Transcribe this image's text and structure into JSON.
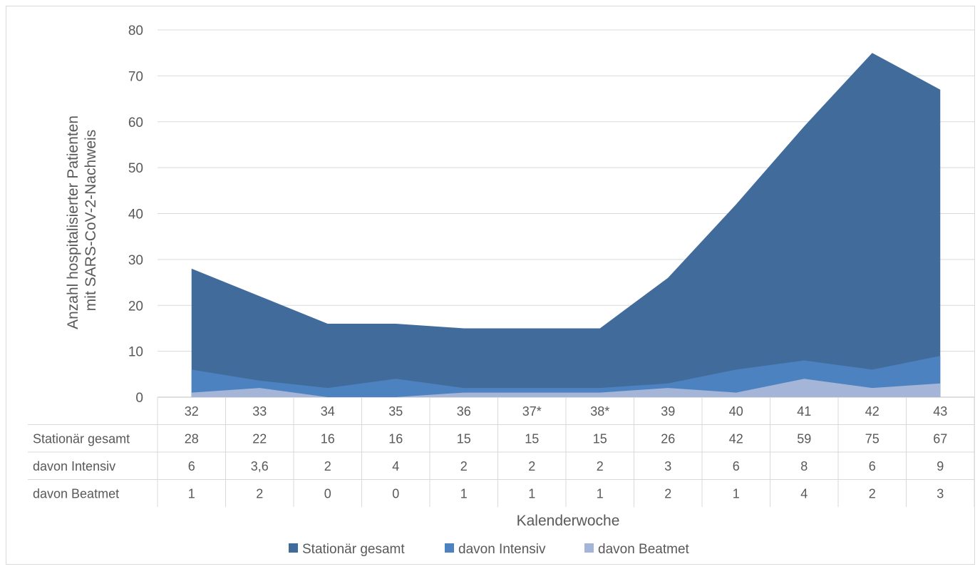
{
  "chart_data": {
    "type": "area",
    "stacking": "overlap",
    "categories": [
      "32",
      "33",
      "34",
      "35",
      "36",
      "37*",
      "38*",
      "39",
      "40",
      "41",
      "42",
      "43"
    ],
    "series": [
      {
        "name": "Stationär gesamt",
        "color": "#416b9b",
        "values": [
          28,
          22,
          16,
          16,
          15,
          15,
          15,
          26,
          42,
          59,
          75,
          67
        ],
        "labels": [
          "28",
          "22",
          "16",
          "16",
          "15",
          "15",
          "15",
          "26",
          "42",
          "59",
          "75",
          "67"
        ]
      },
      {
        "name": "davon Intensiv",
        "color": "#4d82c0",
        "values": [
          6,
          3.6,
          2,
          4,
          2,
          2,
          2,
          3,
          6,
          8,
          6,
          9
        ],
        "labels": [
          "6",
          "3,6",
          "2",
          "4",
          "2",
          "2",
          "2",
          "3",
          "6",
          "8",
          "6",
          "9"
        ]
      },
      {
        "name": "davon Beatmet",
        "color": "#a5b5d8",
        "values": [
          1,
          2,
          0,
          0,
          1,
          1,
          1,
          2,
          1,
          4,
          2,
          3
        ],
        "labels": [
          "1",
          "2",
          "0",
          "0",
          "1",
          "1",
          "1",
          "2",
          "1",
          "4",
          "2",
          "3"
        ]
      }
    ],
    "ylabel_lines": [
      "Anzahl hospitalisierter Patienten",
      "mit SARS-CoV-2-Nachweis"
    ],
    "xlabel": "Kalenderwoche",
    "ylim": [
      0,
      80
    ],
    "yticks": [
      0,
      10,
      20,
      30,
      40,
      50,
      60,
      70,
      80
    ],
    "grid": true,
    "legend_position": "bottom",
    "data_table": true
  }
}
